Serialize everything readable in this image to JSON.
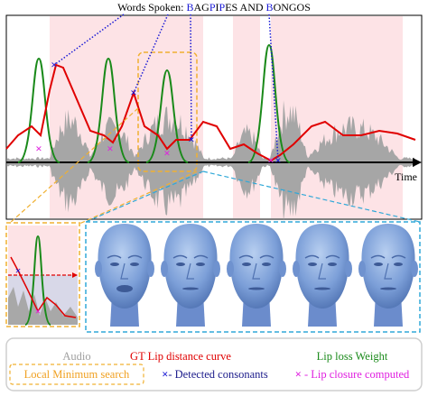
{
  "title": {
    "segments": [
      {
        "text": "Words Spoken: ",
        "color": "#000000"
      },
      {
        "text": "B",
        "color": "#1a1ad6"
      },
      {
        "text": "AG",
        "color": "#000000"
      },
      {
        "text": "P",
        "color": "#1a1ad6"
      },
      {
        "text": "I",
        "color": "#000000"
      },
      {
        "text": "P",
        "color": "#1a1ad6"
      },
      {
        "text": "ES AND ",
        "color": "#000000"
      },
      {
        "text": "B",
        "color": "#1a1ad6"
      },
      {
        "text": "ONGOS",
        "color": "#000000"
      }
    ]
  },
  "axis_label": "Time",
  "legend": {
    "row1": [
      {
        "text": "Audio",
        "color": "#a0a0a0"
      },
      {
        "text": "GT Lip distance curve",
        "color": "#e00000"
      },
      {
        "text": "Lip loss Weight",
        "color": "#1a8a1a"
      }
    ],
    "row2": [
      {
        "text": "Local Minimum search",
        "color": "#f0a020"
      },
      {
        "marker": "×",
        "marker_color": "#1a1ad6",
        "text": "- Detected consonants",
        "color": "#1a1a8a"
      },
      {
        "marker": "×",
        "marker_color": "#e020e0",
        "text": " - Lip closure computed",
        "color": "#e020e0"
      }
    ]
  }
}
